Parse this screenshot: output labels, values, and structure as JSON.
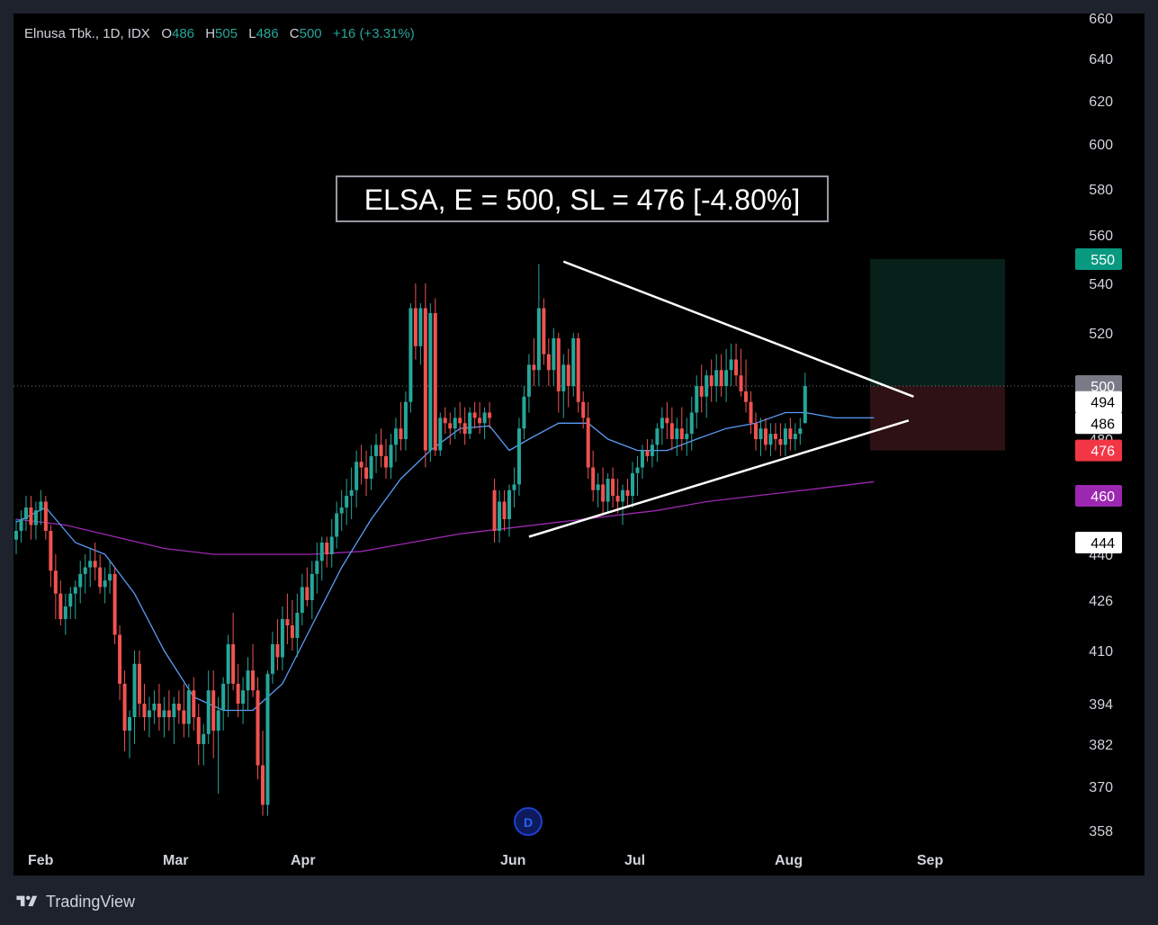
{
  "legend": {
    "symbol": "Elnusa Tbk., 1D, IDX",
    "open_label": "O",
    "open": "486",
    "high_label": "H",
    "high": "505",
    "low_label": "L",
    "low": "486",
    "close_label": "C",
    "close": "500",
    "change": "+16 (+3.31%)"
  },
  "footer": {
    "brand": "TradingView"
  },
  "annotation": {
    "text": "ELSA, E = 500, SL = 476 [-4.80%]"
  },
  "colors": {
    "up": "#26a69a",
    "down": "#ef5350",
    "ma_fast": "#5b9cf6",
    "ma_slow": "#9c27b0",
    "target": "#089981",
    "stop": "#f23645",
    "entry": "#787b86",
    "background": "#000000"
  },
  "chart_data": {
    "type": "candlestick",
    "title": "Elnusa Tbk., 1D, IDX",
    "ylim": [
      358,
      660
    ],
    "y_ticks": [
      "660",
      "640",
      "620",
      "600",
      "580",
      "560",
      "540",
      "520",
      "500",
      "480",
      "460",
      "440",
      "426",
      "410",
      "394",
      "382",
      "370",
      "358"
    ],
    "x_ticks": [
      "Feb",
      "Mar",
      "Apr",
      "Jun",
      "Jul",
      "Aug",
      "Sep"
    ],
    "price_markers": [
      {
        "value": "550",
        "kind": "target"
      },
      {
        "value": "500",
        "kind": "entry"
      },
      {
        "value": "494",
        "kind": "ma"
      },
      {
        "value": "486",
        "kind": "ma"
      },
      {
        "value": "476",
        "kind": "stop"
      },
      {
        "value": "460",
        "kind": "ma_slow"
      },
      {
        "value": "444",
        "kind": "support"
      }
    ],
    "position": {
      "entry": 500,
      "stop": 476,
      "target": 550,
      "start": "Aug",
      "end": "Sep"
    },
    "events": [
      {
        "label": "D",
        "date": "Jun"
      }
    ],
    "ohlc": [
      [
        445,
        452,
        440,
        448
      ],
      [
        448,
        455,
        444,
        452
      ],
      [
        452,
        460,
        448,
        456
      ],
      [
        456,
        460,
        445,
        450
      ],
      [
        450,
        458,
        445,
        455
      ],
      [
        455,
        462,
        450,
        458
      ],
      [
        458,
        460,
        445,
        448
      ],
      [
        448,
        450,
        430,
        435
      ],
      [
        435,
        440,
        420,
        428
      ],
      [
        428,
        432,
        418,
        420
      ],
      [
        420,
        428,
        415,
        424
      ],
      [
        424,
        430,
        420,
        428
      ],
      [
        428,
        432,
        420,
        430
      ],
      [
        430,
        438,
        425,
        434
      ],
      [
        434,
        440,
        428,
        436
      ],
      [
        436,
        442,
        430,
        438
      ],
      [
        438,
        444,
        432,
        436
      ],
      [
        436,
        440,
        428,
        430
      ],
      [
        430,
        436,
        425,
        432
      ],
      [
        432,
        438,
        428,
        434
      ],
      [
        434,
        436,
        412,
        415
      ],
      [
        415,
        418,
        395,
        400
      ],
      [
        400,
        404,
        380,
        386
      ],
      [
        386,
        392,
        378,
        390
      ],
      [
        390,
        410,
        382,
        406
      ],
      [
        406,
        410,
        390,
        394
      ],
      [
        394,
        400,
        386,
        390
      ],
      [
        390,
        396,
        384,
        392
      ],
      [
        392,
        398,
        388,
        394
      ],
      [
        394,
        400,
        386,
        390
      ],
      [
        390,
        396,
        384,
        392
      ],
      [
        392,
        398,
        386,
        390
      ],
      [
        390,
        396,
        382,
        394
      ],
      [
        394,
        398,
        388,
        392
      ],
      [
        392,
        400,
        384,
        388
      ],
      [
        388,
        400,
        384,
        398
      ],
      [
        398,
        402,
        386,
        390
      ],
      [
        390,
        394,
        376,
        382
      ],
      [
        382,
        388,
        376,
        385
      ],
      [
        385,
        404,
        382,
        398
      ],
      [
        398,
        404,
        378,
        386
      ],
      [
        386,
        396,
        368,
        392
      ],
      [
        392,
        402,
        386,
        400
      ],
      [
        400,
        415,
        390,
        412
      ],
      [
        412,
        422,
        398,
        400
      ],
      [
        400,
        406,
        390,
        394
      ],
      [
        394,
        402,
        388,
        398
      ],
      [
        398,
        408,
        392,
        404
      ],
      [
        404,
        412,
        396,
        398
      ],
      [
        398,
        402,
        372,
        376
      ],
      [
        376,
        386,
        362,
        365
      ],
      [
        365,
        404,
        362,
        403
      ],
      [
        403,
        416,
        400,
        412
      ],
      [
        412,
        420,
        404,
        408
      ],
      [
        408,
        424,
        404,
        420
      ],
      [
        420,
        428,
        412,
        418
      ],
      [
        418,
        426,
        410,
        414
      ],
      [
        414,
        428,
        408,
        422
      ],
      [
        422,
        434,
        418,
        430
      ],
      [
        430,
        436,
        424,
        426
      ],
      [
        426,
        438,
        420,
        434
      ],
      [
        434,
        444,
        428,
        438
      ],
      [
        438,
        446,
        432,
        444
      ],
      [
        444,
        446,
        436,
        440
      ],
      [
        440,
        452,
        436,
        446
      ],
      [
        446,
        458,
        442,
        454
      ],
      [
        454,
        462,
        448,
        456
      ],
      [
        456,
        466,
        450,
        460
      ],
      [
        460,
        470,
        452,
        462
      ],
      [
        462,
        476,
        456,
        472
      ],
      [
        472,
        478,
        464,
        470
      ],
      [
        470,
        476,
        460,
        466
      ],
      [
        466,
        478,
        462,
        474
      ],
      [
        474,
        482,
        468,
        478
      ],
      [
        478,
        484,
        470,
        474
      ],
      [
        474,
        480,
        466,
        470
      ],
      [
        470,
        482,
        466,
        478
      ],
      [
        478,
        488,
        472,
        484
      ],
      [
        484,
        494,
        476,
        480
      ],
      [
        480,
        498,
        476,
        494
      ],
      [
        494,
        532,
        490,
        530
      ],
      [
        530,
        540,
        510,
        515
      ],
      [
        515,
        532,
        508,
        530
      ],
      [
        530,
        540,
        470,
        476
      ],
      [
        476,
        532,
        472,
        528
      ],
      [
        528,
        534,
        474,
        476
      ],
      [
        476,
        490,
        474,
        488
      ],
      [
        488,
        492,
        482,
        486
      ],
      [
        486,
        490,
        478,
        484
      ],
      [
        484,
        492,
        480,
        488
      ],
      [
        488,
        494,
        482,
        486
      ],
      [
        486,
        492,
        478,
        482
      ],
      [
        482,
        492,
        480,
        490
      ],
      [
        490,
        494,
        484,
        488
      ],
      [
        488,
        494,
        482,
        486
      ],
      [
        486,
        492,
        480,
        490
      ],
      [
        490,
        494,
        484,
        488
      ],
      [
        462,
        466,
        444,
        448
      ],
      [
        448,
        462,
        444,
        458
      ],
      [
        458,
        462,
        448,
        452
      ],
      [
        452,
        464,
        446,
        462
      ],
      [
        462,
        470,
        456,
        464
      ],
      [
        464,
        488,
        460,
        484
      ],
      [
        484,
        500,
        480,
        496
      ],
      [
        496,
        512,
        490,
        508
      ],
      [
        508,
        518,
        500,
        506
      ],
      [
        506,
        548,
        500,
        530
      ],
      [
        530,
        534,
        508,
        512
      ],
      [
        512,
        518,
        500,
        506
      ],
      [
        506,
        522,
        500,
        518
      ],
      [
        518,
        520,
        490,
        498
      ],
      [
        498,
        512,
        488,
        508
      ],
      [
        508,
        514,
        492,
        500
      ],
      [
        500,
        520,
        496,
        518
      ],
      [
        518,
        520,
        490,
        494
      ],
      [
        494,
        498,
        484,
        488
      ],
      [
        488,
        494,
        466,
        470
      ],
      [
        470,
        476,
        458,
        462
      ],
      [
        462,
        468,
        456,
        464
      ],
      [
        464,
        470,
        454,
        458
      ],
      [
        458,
        468,
        454,
        466
      ],
      [
        466,
        470,
        456,
        460
      ],
      [
        460,
        466,
        454,
        458
      ],
      [
        458,
        464,
        450,
        462
      ],
      [
        462,
        466,
        456,
        460
      ],
      [
        460,
        472,
        456,
        468
      ],
      [
        468,
        474,
        460,
        470
      ],
      [
        470,
        478,
        466,
        476
      ],
      [
        476,
        480,
        472,
        474
      ],
      [
        474,
        480,
        470,
        478
      ],
      [
        478,
        486,
        472,
        484
      ],
      [
        484,
        492,
        478,
        488
      ],
      [
        488,
        494,
        480,
        486
      ],
      [
        486,
        492,
        476,
        480
      ],
      [
        480,
        488,
        474,
        484
      ],
      [
        484,
        492,
        476,
        480
      ],
      [
        480,
        488,
        474,
        482
      ],
      [
        482,
        496,
        476,
        490
      ],
      [
        490,
        504,
        484,
        500
      ],
      [
        500,
        508,
        490,
        496
      ],
      [
        496,
        506,
        488,
        504
      ],
      [
        504,
        510,
        494,
        500
      ],
      [
        500,
        512,
        494,
        506
      ],
      [
        506,
        512,
        496,
        500
      ],
      [
        500,
        514,
        494,
        506
      ],
      [
        506,
        516,
        500,
        510
      ],
      [
        510,
        516,
        500,
        504
      ],
      [
        504,
        514,
        496,
        498
      ],
      [
        498,
        510,
        490,
        494
      ],
      [
        494,
        498,
        482,
        486
      ],
      [
        486,
        490,
        476,
        480
      ],
      [
        480,
        488,
        474,
        484
      ],
      [
        484,
        488,
        476,
        478
      ],
      [
        478,
        486,
        474,
        482
      ],
      [
        482,
        486,
        476,
        480
      ],
      [
        480,
        486,
        474,
        478
      ],
      [
        478,
        486,
        474,
        484
      ],
      [
        484,
        488,
        476,
        480
      ],
      [
        480,
        486,
        476,
        482
      ],
      [
        482,
        488,
        478,
        484
      ],
      [
        486,
        505,
        486,
        500
      ]
    ],
    "ma_fast": [
      [
        0,
        451
      ],
      [
        6,
        456
      ],
      [
        12,
        444
      ],
      [
        18,
        440
      ],
      [
        24,
        428
      ],
      [
        30,
        410
      ],
      [
        36,
        396
      ],
      [
        42,
        392
      ],
      [
        48,
        392
      ],
      [
        54,
        400
      ],
      [
        60,
        418
      ],
      [
        66,
        436
      ],
      [
        72,
        452
      ],
      [
        78,
        466
      ],
      [
        84,
        476
      ],
      [
        90,
        484
      ],
      [
        96,
        485
      ],
      [
        100,
        476
      ],
      [
        104,
        480
      ],
      [
        110,
        486
      ],
      [
        116,
        486
      ],
      [
        120,
        480
      ],
      [
        126,
        476
      ],
      [
        132,
        476
      ],
      [
        138,
        480
      ],
      [
        144,
        484
      ],
      [
        150,
        486
      ],
      [
        156,
        490
      ],
      [
        160,
        490
      ],
      [
        166,
        488
      ],
      [
        172,
        488
      ],
      [
        174,
        488
      ]
    ],
    "ma_slow": [
      [
        0,
        452
      ],
      [
        10,
        450
      ],
      [
        20,
        446
      ],
      [
        30,
        442
      ],
      [
        40,
        440
      ],
      [
        50,
        440
      ],
      [
        60,
        440
      ],
      [
        70,
        441
      ],
      [
        80,
        444
      ],
      [
        90,
        447
      ],
      [
        100,
        449
      ],
      [
        110,
        451
      ],
      [
        120,
        453
      ],
      [
        130,
        455
      ],
      [
        140,
        458
      ],
      [
        150,
        460
      ],
      [
        160,
        462
      ],
      [
        174,
        465
      ]
    ],
    "trendlines": [
      {
        "from": [
          111,
          549
        ],
        "to": [
          182,
          496
        ],
        "kind": "resistance"
      },
      {
        "from": [
          104,
          446
        ],
        "to": [
          181,
          487
        ],
        "kind": "support"
      }
    ]
  }
}
